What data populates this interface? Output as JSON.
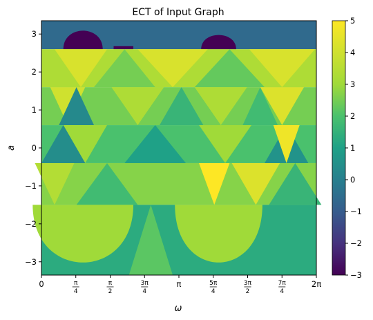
{
  "chart_data": {
    "type": "heatmap",
    "title": "ECT of Input Graph",
    "xlabel": "ω",
    "ylabel": "a",
    "xlim": [
      0,
      6.2832
    ],
    "ylim": [
      -3.35,
      3.35
    ],
    "x_ticks": [
      {
        "value": 0,
        "label": "0"
      },
      {
        "value": 0.7854,
        "num": "π",
        "den": "4"
      },
      {
        "value": 1.5708,
        "num": "π",
        "den": "2"
      },
      {
        "value": 2.3562,
        "num": "3π",
        "den": "4"
      },
      {
        "value": 3.1416,
        "label": "π"
      },
      {
        "value": 3.927,
        "num": "5π",
        "den": "4"
      },
      {
        "value": 4.7124,
        "num": "3π",
        "den": "2"
      },
      {
        "value": 5.4978,
        "num": "7π",
        "den": "4"
      },
      {
        "value": 6.2832,
        "label": "2π"
      }
    ],
    "y_ticks": [
      {
        "value": 3,
        "label": "3"
      },
      {
        "value": 2,
        "label": "2"
      },
      {
        "value": 1,
        "label": "1"
      },
      {
        "value": 0,
        "label": "0"
      },
      {
        "value": -1,
        "label": "−1"
      },
      {
        "value": -2,
        "label": "−2"
      },
      {
        "value": -3,
        "label": "−3"
      }
    ],
    "colorbar": {
      "colormap": "viridis",
      "range": [
        -3,
        5
      ],
      "ticks": [
        {
          "value": 5,
          "label": "5"
        },
        {
          "value": 4,
          "label": "4"
        },
        {
          "value": 3,
          "label": "3"
        },
        {
          "value": 2,
          "label": "2"
        },
        {
          "value": 1,
          "label": "1"
        },
        {
          "value": 0,
          "label": "0"
        },
        {
          "value": -1,
          "label": "−1"
        },
        {
          "value": -2,
          "label": "−2"
        },
        {
          "value": -3,
          "label": "−3"
        }
      ]
    },
    "regions": [
      {
        "a_range": [
          2.6,
          3.35
        ],
        "base_value": -0.6,
        "patches": [
          {
            "type": "dome",
            "center": 0.95,
            "half_width": 0.45,
            "peak_a": 3.25,
            "value": -3
          },
          {
            "type": "dome",
            "center": 4.05,
            "half_width": 0.4,
            "peak_a": 3.1,
            "value": -3
          },
          {
            "type": "band",
            "x_range": [
              1.65,
              2.1
            ],
            "a_range": [
              2.6,
              2.68
            ],
            "value": -3
          }
        ]
      },
      {
        "a_range": [
          1.6,
          2.6
        ],
        "base_value": 3.3,
        "patches": [
          {
            "type": "tri_down",
            "center": 0.9,
            "half_width": 0.6,
            "value": 4.2
          },
          {
            "type": "tri_down",
            "center": 3.0,
            "half_width": 0.8,
            "value": 4.2
          },
          {
            "type": "tri_up",
            "center": 1.9,
            "half_width": 0.7,
            "value": 2.5
          },
          {
            "type": "tri_up",
            "center": 4.3,
            "half_width": 0.8,
            "value": 2.3
          },
          {
            "type": "tri_down",
            "center": 5.5,
            "half_width": 0.75,
            "value": 4.2
          }
        ]
      },
      {
        "a_range": [
          0.6,
          1.6
        ],
        "base_value": 2.5,
        "patches": [
          {
            "type": "tri_down",
            "center": 0.6,
            "half_width": 0.4,
            "value": 4.0
          },
          {
            "type": "tri_up",
            "center": 0.8,
            "half_width": 0.4,
            "value": 0.3
          },
          {
            "type": "tri_down",
            "center": 2.2,
            "half_width": 0.6,
            "value": 3.3
          },
          {
            "type": "tri_up",
            "center": 3.2,
            "half_width": 0.5,
            "value": 1.6
          },
          {
            "type": "tri_down",
            "center": 4.1,
            "half_width": 0.6,
            "value": 3.3
          },
          {
            "type": "tri_down",
            "center": 5.5,
            "half_width": 0.5,
            "value": 4.3
          },
          {
            "type": "tri_up",
            "center": 5.0,
            "half_width": 0.4,
            "value": 1.8
          }
        ]
      },
      {
        "a_range": [
          -0.4,
          0.6
        ],
        "base_value": 2.0,
        "patches": [
          {
            "type": "tri_down",
            "center": 1.0,
            "half_width": 0.5,
            "value": 3.0
          },
          {
            "type": "tri_up",
            "center": 0.5,
            "half_width": 0.5,
            "value": 0.4
          },
          {
            "type": "tri_up",
            "center": 2.6,
            "half_width": 0.7,
            "value": 1.0
          },
          {
            "type": "tri_down",
            "center": 4.2,
            "half_width": 0.6,
            "value": 3.0
          },
          {
            "type": "tri_up",
            "center": 5.6,
            "half_width": 0.5,
            "value": 0.6
          },
          {
            "type": "tri_down",
            "center": 5.6,
            "half_width": 0.3,
            "value": 4.7
          }
        ]
      },
      {
        "a_range": [
          -1.5,
          -0.4
        ],
        "base_value": 2.7,
        "patches": [
          {
            "type": "tri_down",
            "center": 3.95,
            "half_width": 0.35,
            "value": 5.0
          },
          {
            "type": "tri_down",
            "center": 4.9,
            "half_width": 0.55,
            "value": 4.3
          },
          {
            "type": "tri_up",
            "center": 1.5,
            "half_width": 0.7,
            "value": 1.8
          },
          {
            "type": "tri_up",
            "center": 5.8,
            "half_width": 0.6,
            "value": 1.6
          },
          {
            "type": "tri_down",
            "center": 0.3,
            "half_width": 0.45,
            "value": 3.4
          }
        ]
      },
      {
        "a_range": [
          -3.35,
          -1.5
        ],
        "base_value": 1.3,
        "patches": [
          {
            "type": "dome_inv",
            "center": 0.95,
            "half_width": 1.15,
            "peak_a": -3.0,
            "value": 3.0
          },
          {
            "type": "dome_inv",
            "center": 4.05,
            "half_width": 1.0,
            "peak_a": -3.0,
            "value": 3.0
          },
          {
            "type": "band",
            "x_range": [
              0.3,
              1.6
            ],
            "a_range": [
              -3.35,
              -3.05
            ],
            "value": 1.3
          },
          {
            "type": "tri_up",
            "center": 2.5,
            "half_width": 0.5,
            "value": 2.2
          }
        ]
      }
    ]
  }
}
